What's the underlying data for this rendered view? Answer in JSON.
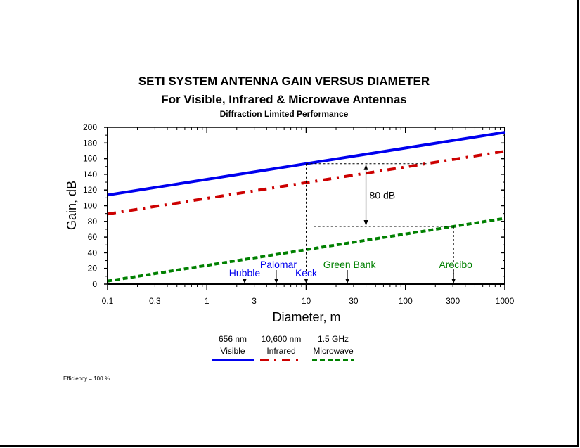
{
  "chart_data": {
    "type": "line",
    "title": "SETI SYSTEM ANTENNA GAIN VERSUS DIAMETER",
    "subtitle": "For Visible, Infrared & Microwave Antennas",
    "subtitle2": "Diffraction Limited Performance",
    "xlabel": "Diameter, m",
    "ylabel": "Gain, dB",
    "xscale": "log",
    "xlim": [
      0.1,
      1000
    ],
    "ylim": [
      0,
      200
    ],
    "xticks": [
      0.1,
      0.3,
      1,
      3,
      10,
      30,
      100,
      300,
      1000
    ],
    "xtick_labels": [
      "0.1",
      "0.3",
      "1",
      "3",
      "10",
      "30",
      "100",
      "300",
      "1000"
    ],
    "yticks": [
      0,
      20,
      40,
      60,
      80,
      100,
      120,
      140,
      160,
      180,
      200
    ],
    "ytick_labels": [
      "0",
      "20",
      "40",
      "60",
      "80",
      "100",
      "120",
      "140",
      "160",
      "180",
      "200"
    ],
    "series": [
      {
        "name": "656 nm",
        "name2": "Visible",
        "color": "#0000ee",
        "style": "solid",
        "x": [
          0.1,
          1000
        ],
        "y": [
          113.6,
          193.6
        ]
      },
      {
        "name": "10,600 nm",
        "name2": "Infrared",
        "color": "#cc0000",
        "style": "dashdot",
        "x": [
          0.1,
          1000
        ],
        "y": [
          89.4,
          169.4
        ]
      },
      {
        "name": "1.5 GHz",
        "name2": "Microwave",
        "color": "#008000",
        "style": "dashed",
        "x": [
          0.1,
          1000
        ],
        "y": [
          3.9,
          83.9
        ]
      }
    ],
    "annotations": [
      {
        "text": "Hubble",
        "x": 2.4,
        "color": "#0000ee"
      },
      {
        "text": "Palomar",
        "x": 5.0,
        "color": "#0000ee"
      },
      {
        "text": "Keck",
        "x": 10.0,
        "color": "#0000ee"
      },
      {
        "text": "Green Bank",
        "x": 26.0,
        "color": "#008000"
      },
      {
        "text": "Arecibo",
        "x": 305.0,
        "color": "#008000"
      }
    ],
    "difference_label": "80 dB",
    "legend_position": "below"
  },
  "footnote": "Efficiency = 100 %."
}
